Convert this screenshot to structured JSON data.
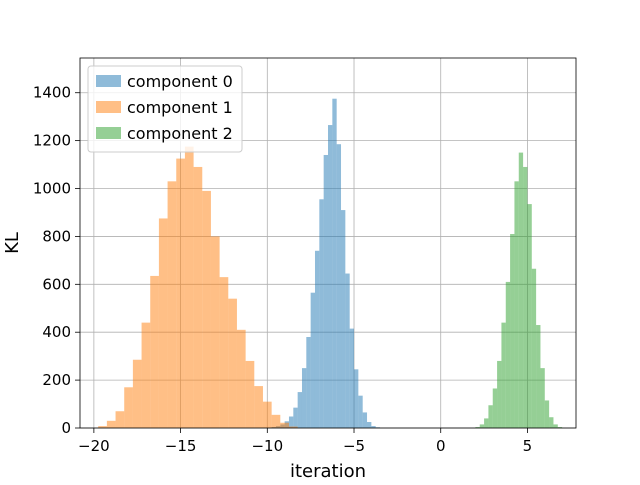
{
  "chart_data": {
    "type": "bar",
    "title": "",
    "xlabel": "iteration",
    "ylabel": "KL",
    "xlim": [
      -20.8,
      7.8
    ],
    "ylim": [
      0,
      1545
    ],
    "xticks": [
      -20,
      -15,
      -10,
      -5,
      0,
      5
    ],
    "xtick_labels": [
      "−20",
      "−15",
      "−10",
      "−5",
      "0",
      "5"
    ],
    "yticks": [
      0,
      200,
      400,
      600,
      800,
      1000,
      1200,
      1400
    ],
    "ytick_labels": [
      "0",
      "200",
      "400",
      "600",
      "800",
      "1000",
      "1200",
      "1400"
    ],
    "grid": true,
    "legend_placement": "upper left",
    "series": [
      {
        "name": "component 0",
        "color": "#1f77b4",
        "alpha": 0.5,
        "bin_width": 0.25,
        "bins": [
          [
            -9.75,
            4
          ],
          [
            -9.5,
            8
          ],
          [
            -9.25,
            15
          ],
          [
            -9.0,
            28
          ],
          [
            -8.75,
            48
          ],
          [
            -8.5,
            85
          ],
          [
            -8.25,
            150
          ],
          [
            -8.0,
            250
          ],
          [
            -7.75,
            380
          ],
          [
            -7.5,
            565
          ],
          [
            -7.25,
            740
          ],
          [
            -7.0,
            955
          ],
          [
            -6.75,
            1140
          ],
          [
            -6.5,
            1265
          ],
          [
            -6.25,
            1375
          ],
          [
            -6.0,
            1185
          ],
          [
            -5.75,
            910
          ],
          [
            -5.5,
            645
          ],
          [
            -5.25,
            415
          ],
          [
            -5.0,
            245
          ],
          [
            -4.75,
            135
          ],
          [
            -4.5,
            65
          ],
          [
            -4.25,
            25
          ],
          [
            -4.0,
            8
          ],
          [
            -3.75,
            3
          ]
        ]
      },
      {
        "name": "component 1",
        "color": "#ff7f0e",
        "alpha": 0.5,
        "bin_width": 0.5,
        "bins": [
          [
            -19.75,
            8
          ],
          [
            -19.25,
            30
          ],
          [
            -18.75,
            70
          ],
          [
            -18.25,
            170
          ],
          [
            -17.75,
            285
          ],
          [
            -17.25,
            440
          ],
          [
            -16.75,
            635
          ],
          [
            -16.25,
            875
          ],
          [
            -15.75,
            1030
          ],
          [
            -15.25,
            1125
          ],
          [
            -14.75,
            1175
          ],
          [
            -14.25,
            1090
          ],
          [
            -13.75,
            990
          ],
          [
            -13.25,
            800
          ],
          [
            -12.75,
            630
          ],
          [
            -12.25,
            540
          ],
          [
            -11.75,
            410
          ],
          [
            -11.25,
            280
          ],
          [
            -10.75,
            175
          ],
          [
            -10.25,
            110
          ],
          [
            -9.75,
            55
          ],
          [
            -9.25,
            22
          ],
          [
            -8.75,
            6
          ]
        ]
      },
      {
        "name": "component 2",
        "color": "#2ca02c",
        "alpha": 0.5,
        "bin_width": 0.25,
        "bins": [
          [
            2.0,
            4
          ],
          [
            2.25,
            15
          ],
          [
            2.5,
            40
          ],
          [
            2.75,
            95
          ],
          [
            3.0,
            165
          ],
          [
            3.25,
            280
          ],
          [
            3.5,
            440
          ],
          [
            3.75,
            610
          ],
          [
            4.0,
            810
          ],
          [
            4.25,
            1030
          ],
          [
            4.5,
            1150
          ],
          [
            4.75,
            1090
          ],
          [
            5.0,
            935
          ],
          [
            5.25,
            665
          ],
          [
            5.5,
            430
          ],
          [
            5.75,
            250
          ],
          [
            6.0,
            115
          ],
          [
            6.25,
            45
          ],
          [
            6.5,
            15
          ],
          [
            6.75,
            4
          ]
        ]
      }
    ]
  }
}
